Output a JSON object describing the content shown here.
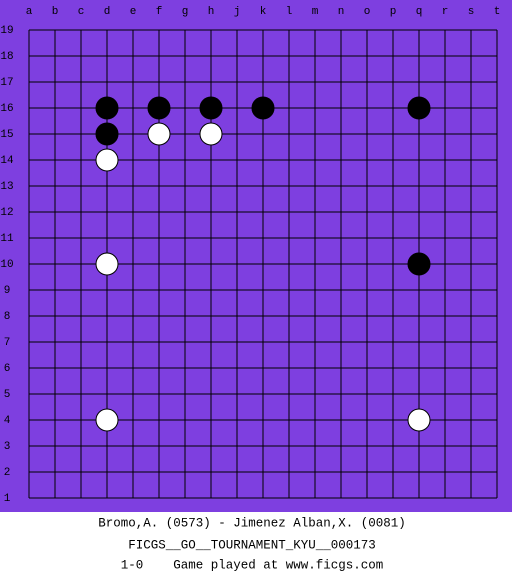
{
  "board": {
    "columns": [
      "a",
      "b",
      "c",
      "d",
      "e",
      "f",
      "g",
      "h",
      "j",
      "k",
      "l",
      "m",
      "n",
      "o",
      "p",
      "q",
      "r",
      "s",
      "t"
    ],
    "rows": [
      19,
      18,
      17,
      16,
      15,
      14,
      13,
      12,
      11,
      10,
      9,
      8,
      7,
      6,
      5,
      4,
      3,
      2,
      1
    ],
    "background": "#7e3fe0",
    "stones": [
      {
        "color": "black",
        "col": "d",
        "row": 16
      },
      {
        "color": "black",
        "col": "f",
        "row": 16
      },
      {
        "color": "black",
        "col": "h",
        "row": 16
      },
      {
        "color": "black",
        "col": "k",
        "row": 16
      },
      {
        "color": "black",
        "col": "q",
        "row": 16
      },
      {
        "color": "black",
        "col": "d",
        "row": 15
      },
      {
        "color": "white",
        "col": "f",
        "row": 15
      },
      {
        "color": "white",
        "col": "h",
        "row": 15
      },
      {
        "color": "white",
        "col": "d",
        "row": 14
      },
      {
        "color": "white",
        "col": "d",
        "row": 10
      },
      {
        "color": "black",
        "col": "q",
        "row": 10
      },
      {
        "color": "white",
        "col": "d",
        "row": 4
      },
      {
        "color": "white",
        "col": "q",
        "row": 4
      }
    ]
  },
  "caption": {
    "players": "Bromo,A. (0573) - Jimenez Alban,X. (0081)",
    "event": "FICGS__GO__TOURNAMENT_KYU__000173",
    "result": "1-0    Game played at www.ficgs.com"
  }
}
